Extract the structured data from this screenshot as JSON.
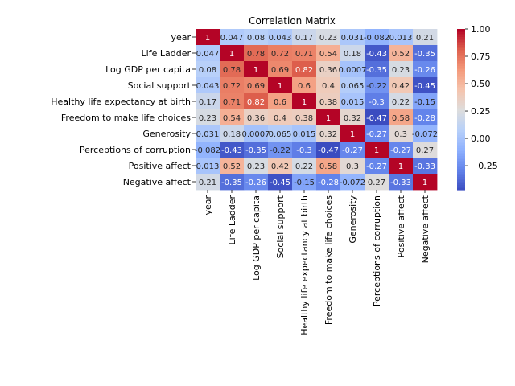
{
  "chart_data": {
    "type": "heatmap",
    "title": "Correlation Matrix",
    "colormap": "coolwarm",
    "annotated": true,
    "labels": [
      "year",
      "Life Ladder",
      "Log GDP per capita",
      "Social support",
      "Healthy life expectancy at birth",
      "Freedom to make life choices",
      "Generosity",
      "Perceptions of corruption",
      "Positive affect",
      "Negative affect"
    ],
    "values": [
      [
        1,
        0.047,
        0.08,
        0.043,
        0.17,
        0.23,
        0.031,
        -0.082,
        0.013,
        0.21
      ],
      [
        0.047,
        1,
        0.78,
        0.72,
        0.71,
        0.54,
        0.18,
        -0.43,
        0.52,
        -0.35
      ],
      [
        0.08,
        0.78,
        1,
        0.69,
        0.82,
        0.36,
        0.0007,
        -0.35,
        0.23,
        -0.26
      ],
      [
        0.043,
        0.72,
        0.69,
        1,
        0.6,
        0.4,
        0.065,
        -0.22,
        0.42,
        -0.45
      ],
      [
        0.17,
        0.71,
        0.82,
        0.6,
        1,
        0.38,
        0.015,
        -0.3,
        0.22,
        -0.15
      ],
      [
        0.23,
        0.54,
        0.36,
        0.4,
        0.38,
        1,
        0.32,
        -0.47,
        0.58,
        -0.28
      ],
      [
        0.031,
        0.18,
        0.0007,
        0.065,
        0.015,
        0.32,
        1,
        -0.27,
        0.3,
        -0.072
      ],
      [
        -0.082,
        -0.43,
        -0.35,
        -0.22,
        -0.3,
        -0.47,
        -0.27,
        1,
        -0.27,
        0.27
      ],
      [
        0.013,
        0.52,
        0.23,
        0.42,
        0.22,
        0.58,
        0.3,
        -0.27,
        1,
        -0.33
      ],
      [
        0.21,
        -0.35,
        -0.26,
        -0.45,
        -0.15,
        -0.28,
        -0.072,
        0.27,
        -0.33,
        1
      ]
    ],
    "cell_labels": [
      [
        "1",
        "0.047",
        "0.08",
        "0.043",
        "0.17",
        "0.23",
        "0.031",
        "-0.082",
        "0.013",
        "0.21"
      ],
      [
        "0.047",
        "1",
        "0.78",
        "0.72",
        "0.71",
        "0.54",
        "0.18",
        "-0.43",
        "0.52",
        "-0.35"
      ],
      [
        "0.08",
        "0.78",
        "1",
        "0.69",
        "0.82",
        "0.36",
        "0.0007",
        "-0.35",
        "0.23",
        "-0.26"
      ],
      [
        "0.043",
        "0.72",
        "0.69",
        "1",
        "0.6",
        "0.4",
        "0.065",
        "-0.22",
        "0.42",
        "-0.45"
      ],
      [
        "0.17",
        "0.71",
        "0.82",
        "0.6",
        "1",
        "0.38",
        "0.015",
        "-0.3",
        "0.22",
        "-0.15"
      ],
      [
        "0.23",
        "0.54",
        "0.36",
        "0.4",
        "0.38",
        "1",
        "0.32",
        "-0.47",
        "0.58",
        "-0.28"
      ],
      [
        "0.031",
        "0.18",
        "0.0007",
        "0.065",
        "0.015",
        "0.32",
        "1",
        "-0.27",
        "0.3",
        "-0.072"
      ],
      [
        "-0.082",
        "-0.43",
        "-0.35",
        "-0.22",
        "-0.3",
        "-0.47",
        "-0.27",
        "1",
        "-0.27",
        "0.27"
      ],
      [
        "0.013",
        "0.52",
        "0.23",
        "0.42",
        "0.22",
        "0.58",
        "0.3",
        "-0.27",
        "1",
        "-0.33"
      ],
      [
        "0.21",
        "-0.35",
        "-0.26",
        "-0.45",
        "-0.15",
        "-0.28",
        "-0.072",
        "0.27",
        "-0.33",
        "1"
      ]
    ],
    "colorbar": {
      "vmin": -0.47,
      "vmax": 1,
      "ticks": [
        1.0,
        0.75,
        0.5,
        0.25,
        0.0,
        -0.25
      ],
      "tick_labels": [
        "1.00",
        "0.75",
        "0.50",
        "0.25",
        "0.00",
        "−0.25"
      ]
    }
  }
}
